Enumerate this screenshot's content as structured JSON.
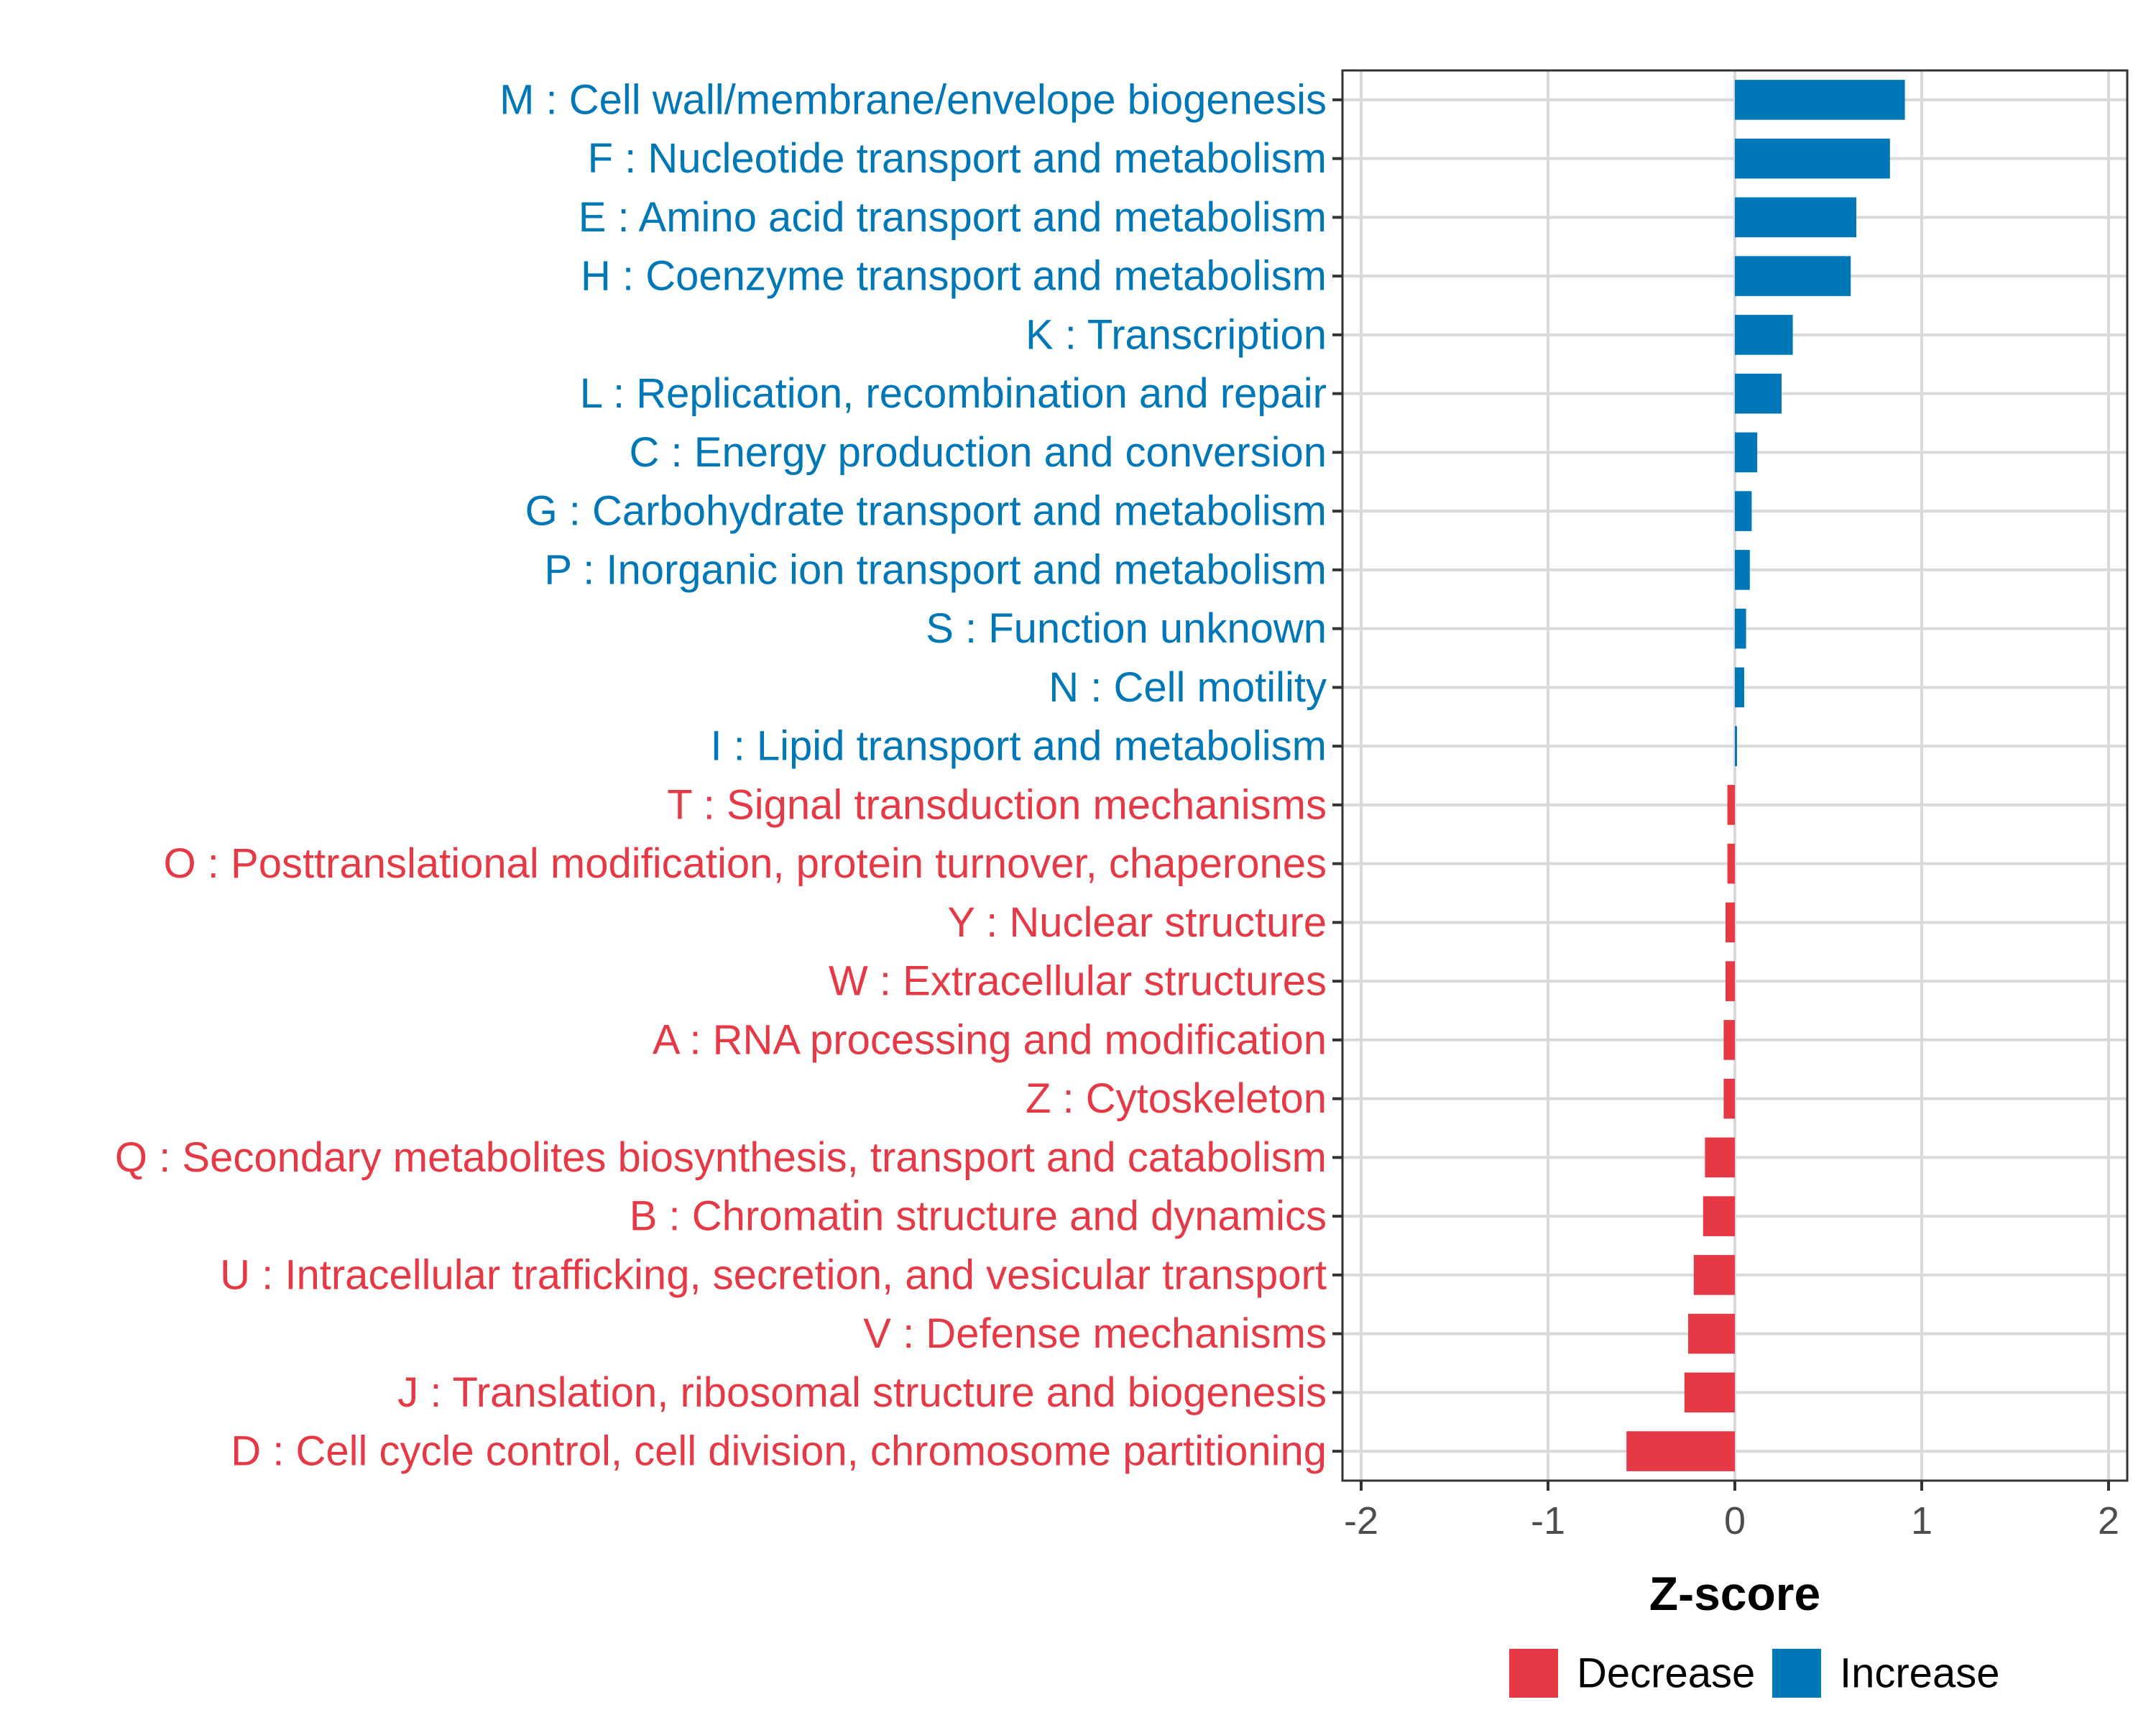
{
  "chart_data": {
    "type": "bar",
    "orientation": "horizontal",
    "xlabel": "Z-score",
    "ylabel": "",
    "xlim": [
      -2.1,
      2.1
    ],
    "xticks": [
      -2,
      -1,
      0,
      1,
      2
    ],
    "xtick_labels": [
      "-2",
      "-1",
      "0",
      "1",
      "2"
    ],
    "grid": true,
    "legend_position": "bottom",
    "legend": [
      {
        "name": "Decrease",
        "color": "#E63946"
      },
      {
        "name": "Increase",
        "color": "#0077B6"
      }
    ],
    "categories": [
      "M : Cell wall/membrane/envelope biogenesis",
      "F : Nucleotide transport and metabolism",
      "E : Amino acid transport and metabolism",
      "H : Coenzyme transport and metabolism",
      "K : Transcription",
      "L : Replication, recombination and repair",
      "C : Energy production and conversion",
      "G : Carbohydrate transport and metabolism",
      "P : Inorganic ion transport and metabolism",
      "S : Function unknown",
      "N : Cell motility",
      "I : Lipid transport and metabolism",
      "T : Signal transduction mechanisms",
      "O : Posttranslational modification, protein turnover, chaperones",
      "Y : Nuclear structure",
      "W : Extracellular structures",
      "A : RNA processing and modification",
      "Z : Cytoskeleton",
      "Q : Secondary metabolites biosynthesis, transport and catabolism",
      "B : Chromatin structure and dynamics",
      "U : Intracellular trafficking, secretion, and vesicular transport",
      "V : Defense mechanisms",
      "J : Translation, ribosomal structure and biogenesis",
      "D : Cell cycle control, cell division, chromosome partitioning"
    ],
    "values": [
      0.91,
      0.83,
      0.65,
      0.62,
      0.31,
      0.25,
      0.12,
      0.09,
      0.08,
      0.06,
      0.05,
      0.01,
      -0.04,
      -0.04,
      -0.05,
      -0.05,
      -0.06,
      -0.06,
      -0.16,
      -0.17,
      -0.22,
      -0.25,
      -0.27,
      -0.58
    ],
    "groups": [
      "Increase",
      "Increase",
      "Increase",
      "Increase",
      "Increase",
      "Increase",
      "Increase",
      "Increase",
      "Increase",
      "Increase",
      "Increase",
      "Increase",
      "Decrease",
      "Decrease",
      "Decrease",
      "Decrease",
      "Decrease",
      "Decrease",
      "Decrease",
      "Decrease",
      "Decrease",
      "Decrease",
      "Decrease",
      "Decrease"
    ]
  }
}
